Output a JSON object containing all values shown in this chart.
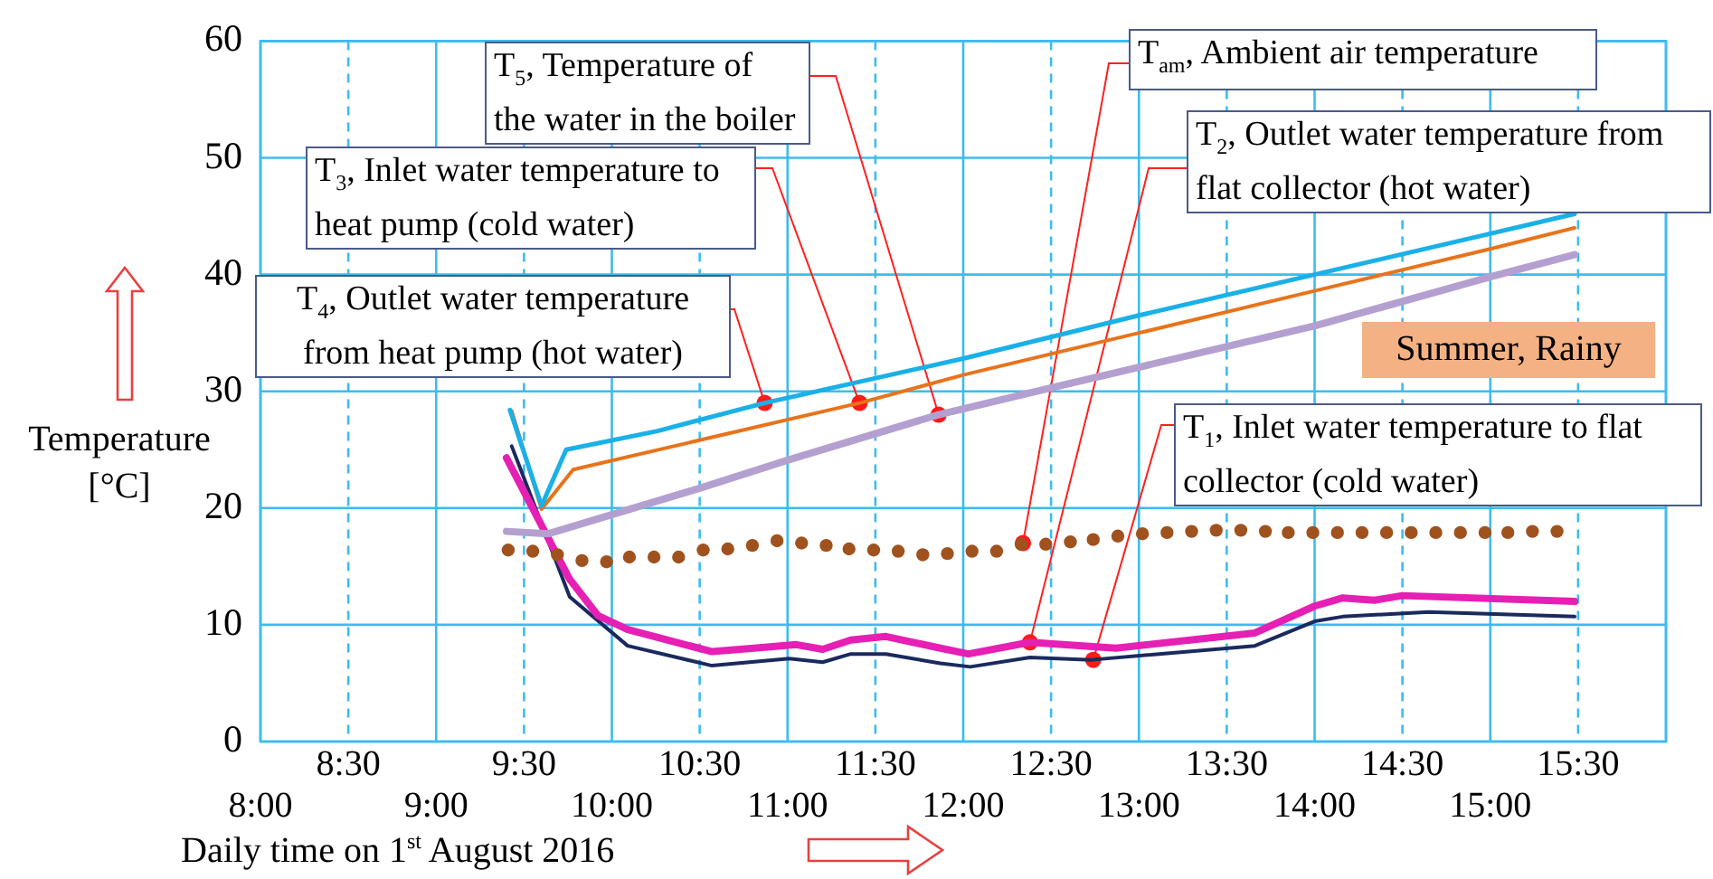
{
  "chart_data": {
    "type": "line",
    "xlabel": "Daily time on 1$^{st}$ August 2016",
    "ylabel": "Temperature [°C]",
    "xlim": [
      8,
      16
    ],
    "ylim": [
      0,
      60
    ],
    "xticks": [
      {
        "value": 8,
        "label": "8:00"
      },
      {
        "value": 9,
        "label": "9:00"
      },
      {
        "value": 10,
        "label": "10:00"
      },
      {
        "value": 11,
        "label": "11:00"
      },
      {
        "value": 12,
        "label": "12:00"
      },
      {
        "value": 13,
        "label": "13:00"
      },
      {
        "value": 14,
        "label": "14:00"
      },
      {
        "value": 15,
        "label": "15:00"
      },
      {
        "value": 16,
        "label": null
      }
    ],
    "x2lim": [
      8,
      16
    ],
    "x2ticks": [
      {
        "value": 8.5,
        "label": "8:30"
      },
      {
        "value": 9.5,
        "label": "9:30"
      },
      {
        "value": 10.5,
        "label": "10:30"
      },
      {
        "value": 11.5,
        "label": "11:30"
      },
      {
        "value": 12.5,
        "label": "12:30"
      },
      {
        "value": 13.5,
        "label": "13:30"
      },
      {
        "value": 14.5,
        "label": "14:30"
      },
      {
        "value": 15.5,
        "label": "15:30"
      }
    ],
    "yticks": [
      0,
      10,
      20,
      30,
      40,
      50,
      60
    ],
    "grid": true,
    "legend": false,
    "line_style": "solid",
    "series": [
      {
        "type": "line",
        "color": "#1ab0e8",
        "x": [
          9.42,
          9.6,
          9.74,
          10.26,
          10.87,
          12,
          13,
          14,
          15,
          15.48
        ],
        "values": [
          28.4,
          20.2,
          25,
          26.6,
          29,
          32.8,
          36.5,
          40,
          43.5,
          45.2
        ]
      },
      {
        "type": "line",
        "color": "#e8731a",
        "x": [
          9.43,
          9.6,
          9.78,
          11.41,
          12,
          13,
          14,
          15,
          15.48
        ],
        "values": [
          28.3,
          19.9,
          23.3,
          29,
          31.4,
          35,
          38.6,
          42.2,
          44
        ]
      },
      {
        "type": "line",
        "color": "#b4a0d0",
        "x": [
          9.4,
          9.64,
          10.5,
          11,
          11.86,
          12.5,
          14,
          15,
          15.48
        ],
        "values": [
          18,
          17.8,
          21.7,
          24.1,
          28,
          30.3,
          35.6,
          39.8,
          41.7
        ]
      },
      {
        "type": "scatter",
        "marker": "circle",
        "color": "#a0521e",
        "x": [
          9.41,
          9.55,
          9.69,
          9.83,
          9.97,
          10.1,
          10.24,
          10.38,
          10.52,
          10.66,
          10.8,
          10.94,
          11.08,
          11.22,
          11.35,
          11.49,
          11.63,
          11.77,
          11.91,
          12.05,
          12.19,
          12.33,
          12.47,
          12.61,
          12.74,
          12.88,
          13.02,
          13.16,
          13.3,
          13.44,
          13.58,
          13.72,
          13.85,
          13.99,
          14.13,
          14.27,
          14.41,
          14.55,
          14.69,
          14.83,
          14.97,
          15.1,
          15.24,
          15.38
        ],
        "values": [
          16.4,
          16.3,
          16,
          15.5,
          15.4,
          15.8,
          15.8,
          15.8,
          16.4,
          16.5,
          16.8,
          17.2,
          17,
          16.8,
          16.5,
          16.4,
          16.3,
          16,
          16.1,
          16.3,
          16.3,
          16.9,
          16.9,
          17.1,
          17.3,
          17.6,
          17.8,
          17.9,
          18,
          18.1,
          18.1,
          18,
          17.9,
          17.9,
          17.9,
          17.9,
          17.9,
          17.9,
          17.9,
          17.9,
          17.9,
          17.9,
          18,
          18
        ]
      },
      {
        "type": "line",
        "color": "#e620b4",
        "x": [
          9.4,
          9.76,
          9.92,
          10.09,
          10.29,
          10.57,
          10.81,
          11.05,
          11.2,
          11.36,
          11.56,
          11.87,
          12.03,
          12.38,
          12.87,
          13.66,
          14,
          14.16,
          14.34,
          14.5,
          15.48
        ],
        "values": [
          24.3,
          13.9,
          10.8,
          9.6,
          8.8,
          7.7,
          8,
          8.3,
          7.9,
          8.7,
          9,
          8,
          7.5,
          8.5,
          8,
          9.3,
          11.6,
          12.3,
          12.1,
          12.5,
          12
        ]
      },
      {
        "type": "line",
        "color": "#1a2a5e",
        "x": [
          9.43,
          9.76,
          10.09,
          10.57,
          11.01,
          11.2,
          11.36,
          11.56,
          11.87,
          12.04,
          12.38,
          12.73,
          13.66,
          14,
          14.16,
          14.65,
          15.48
        ],
        "values": [
          25.3,
          12.4,
          8.2,
          6.5,
          7.1,
          6.8,
          7.5,
          7.5,
          6.7,
          6.4,
          7.2,
          7,
          8.2,
          10.3,
          10.7,
          11.1,
          10.7
        ]
      }
    ],
    "annotations": [
      {
        "text": "T$_{5}$, Temperature of the water in the boiler",
        "x": 11.86,
        "y": 28
      },
      {
        "text": "T$_{3}$, Inlet water temperature to heat pump (cold water)",
        "x": 11.41,
        "y": 29
      },
      {
        "text": "T$_{4}$, Outlet water temperature from heat pump (hot water)",
        "x": 10.87,
        "y": 29
      },
      {
        "text": "T$_{am}$, Ambient air temperature",
        "x": 12.34,
        "y": 17
      },
      {
        "text": "T$_{2}$, Outlet water temperature from flat collector (hot water)",
        "x": 12.38,
        "y": 8.5
      },
      {
        "text": "T$_{1}$, Inlet water temperature to flat collector (cold water)",
        "x": 12.74,
        "y": 7
      },
      "Summer, Rainy"
    ]
  }
}
